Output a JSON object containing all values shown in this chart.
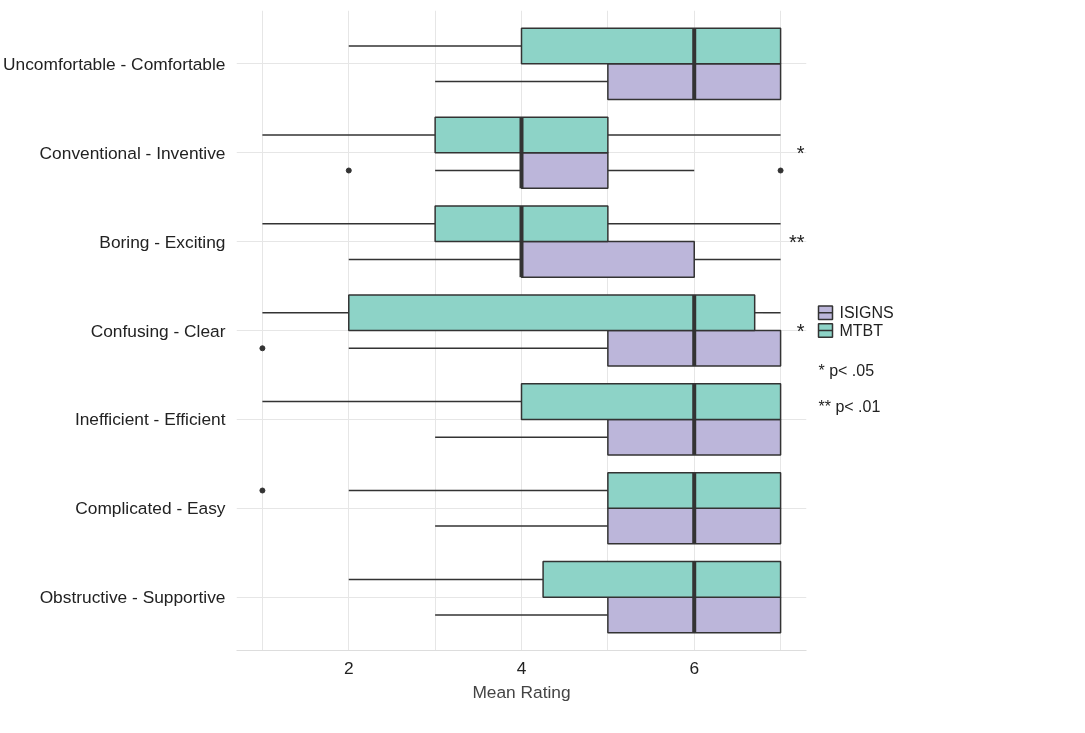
{
  "chart_data": {
    "type": "box",
    "orientation": "horizontal",
    "xlabel": "Mean Rating",
    "categories": [
      "Uncomfortable - Comfortable",
      "Conventional - Inventive",
      "Boring - Exciting",
      "Confusing - Clear",
      "Inefficient - Efficient",
      "Complicated - Easy",
      "Obstructive - Supportive"
    ],
    "xlim": [
      0.7,
      7.3
    ],
    "xticks": [
      {
        "value": 1,
        "label": null
      },
      2,
      {
        "value": 3,
        "label": null
      },
      4,
      {
        "value": 5,
        "label": null
      },
      6,
      {
        "value": 7,
        "label": null
      }
    ],
    "grid": true,
    "legend": "right",
    "series": [
      {
        "name": "ISIGNS",
        "color": "#bcb6da",
        "boxes": [
          {
            "low": 3,
            "q1": 5,
            "median": 6,
            "q3": 7,
            "high": 7
          },
          {
            "low": 3,
            "q1": 4,
            "median": 4,
            "q3": 5,
            "high": 6,
            "outliers": [
              2,
              7
            ]
          },
          {
            "low": 2,
            "q1": 4,
            "median": 4,
            "q3": 6,
            "high": 7
          },
          {
            "low": 2,
            "q1": 5,
            "median": 6,
            "q3": 7,
            "high": 7,
            "outliers": [
              1
            ]
          },
          {
            "low": 3,
            "q1": 5,
            "median": 6,
            "q3": 7,
            "high": 7
          },
          {
            "low": 3,
            "q1": 5,
            "median": 6,
            "q3": 7,
            "high": 7
          },
          {
            "low": 3,
            "q1": 5,
            "median": 6,
            "q3": 7,
            "high": 7
          }
        ]
      },
      {
        "name": "MTBT",
        "color": "#8dd3c7",
        "boxes": [
          {
            "low": 2,
            "q1": 4,
            "median": 6,
            "q3": 7,
            "high": 7
          },
          {
            "low": 1,
            "q1": 3,
            "median": 4,
            "q3": 5,
            "high": 7
          },
          {
            "low": 1,
            "q1": 3,
            "median": 4,
            "q3": 5,
            "high": 7
          },
          {
            "low": 1,
            "q1": 2,
            "median": 6,
            "q3": 6.7,
            "high": 7
          },
          {
            "low": 1,
            "q1": 4,
            "median": 6,
            "q3": 7,
            "high": 7
          },
          {
            "low": 2,
            "q1": 5,
            "median": 6,
            "q3": 7,
            "high": 7,
            "outliers": [
              1
            ]
          },
          {
            "low": 2,
            "q1": 4.25,
            "median": 6,
            "q3": 7,
            "high": 7
          }
        ]
      }
    ],
    "annotations": [
      "*",
      "**",
      "*",
      "* p< .05",
      "** p< .01"
    ]
  }
}
